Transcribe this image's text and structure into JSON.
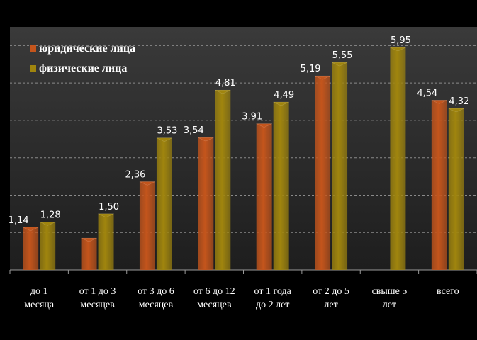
{
  "chart_data": {
    "type": "bar",
    "categories": [
      [
        "до 1",
        "месяца"
      ],
      [
        "от 1 до 3",
        "месяцев"
      ],
      [
        "от 3 до 6",
        "месяцев"
      ],
      [
        "от 6 до 12",
        "месяцев"
      ],
      [
        "от 1 года",
        "до 2 лет"
      ],
      [
        "от 2 до 5",
        "лет"
      ],
      [
        "свыше 5",
        "лет"
      ],
      [
        "всего"
      ]
    ],
    "series": [
      {
        "name": "юридические лица",
        "color": "#c4551c",
        "values": [
          1.14,
          0.85,
          2.36,
          3.54,
          3.91,
          5.19,
          null,
          4.54
        ],
        "labels": [
          "1,14",
          "",
          "2,36",
          "3,54",
          "3,91",
          "5,19",
          "",
          "4,54"
        ]
      },
      {
        "name": "физические лица",
        "color": "#a0850e",
        "values": [
          1.28,
          1.5,
          3.53,
          4.81,
          4.49,
          5.55,
          5.95,
          4.32
        ],
        "labels": [
          "1,28",
          "1,50",
          "3,53",
          "4,81",
          "4,49",
          "5,55",
          "5,95",
          "4,32"
        ]
      }
    ],
    "ylim": [
      0,
      6.5
    ],
    "grid": true,
    "legend_position": "top-left",
    "colors": {
      "background": "#000000",
      "plot_background": "#2a2a2a",
      "gridline": "#8a8a8a"
    }
  }
}
